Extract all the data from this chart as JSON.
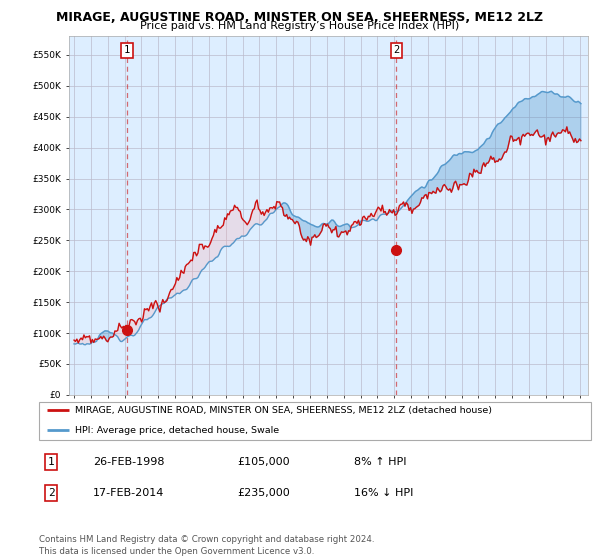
{
  "title": "MIRAGE, AUGUSTINE ROAD, MINSTER ON SEA, SHEERNESS, ME12 2LZ",
  "subtitle": "Price paid vs. HM Land Registry’s House Price Index (HPI)",
  "yticks": [
    0,
    50000,
    100000,
    150000,
    200000,
    250000,
    300000,
    350000,
    400000,
    450000,
    500000,
    550000
  ],
  "ylim": [
    0,
    580000
  ],
  "xlim_left": 1994.7,
  "xlim_right": 2025.5,
  "hpi_color": "#5599cc",
  "price_color": "#cc1111",
  "chart_bg_color": "#ddeeff",
  "t1_x": 1998.13,
  "t1_y": 105000,
  "t2_x": 2014.13,
  "t2_y": 235000,
  "legend_red_label": "MIRAGE, AUGUSTINE ROAD, MINSTER ON SEA, SHEERNESS, ME12 2LZ (detached house)",
  "legend_blue_label": "HPI: Average price, detached house, Swale",
  "footer": "Contains HM Land Registry data © Crown copyright and database right 2024.\nThis data is licensed under the Open Government Licence v3.0.",
  "background_color": "#ffffff",
  "grid_color": "#bbbbcc",
  "row1": [
    "1",
    "26-FEB-1998",
    "£105,000",
    "8% ↑ HPI"
  ],
  "row2": [
    "2",
    "17-FEB-2014",
    "£235,000",
    "16% ↓ HPI"
  ]
}
